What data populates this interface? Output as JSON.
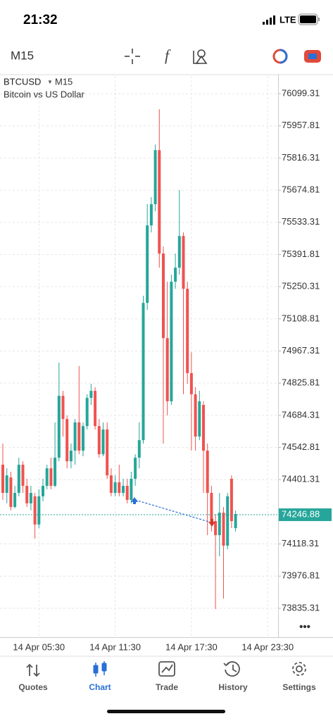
{
  "status_bar": {
    "time": "21:32",
    "network": "LTE"
  },
  "toolbar": {
    "timeframe": "M15"
  },
  "chart_data": {
    "type": "candlestick",
    "symbol": "BTCUSD",
    "timeframe": "M15",
    "subtitle": "Bitcoin vs US Dollar",
    "categories": [
      null,
      null,
      null,
      null,
      null,
      null,
      null,
      null,
      null,
      "14 Apr 05:30",
      null,
      null,
      null,
      null,
      null,
      null,
      null,
      null,
      null,
      null,
      null,
      null,
      null,
      null,
      null,
      null,
      null,
      null,
      "14 Apr 11:30",
      null,
      null,
      null,
      null,
      null,
      null,
      null,
      null,
      null,
      null,
      null,
      null,
      null,
      null,
      null,
      null,
      null,
      null,
      "14 Apr 17:30",
      null,
      null,
      null,
      null,
      null,
      null,
      null,
      null,
      null,
      null,
      null,
      null,
      null,
      null,
      null,
      null,
      null,
      null,
      "14 Apr 23:30"
    ],
    "open": [
      74467,
      74343,
      74411,
      74281,
      74343,
      74467,
      74374,
      74297,
      74328,
      74204,
      74328,
      74374,
      74451,
      74374,
      74498,
      74770,
      74668,
      74482,
      74529,
      74653,
      74529,
      74637,
      74761,
      74792,
      74637,
      74513,
      74622,
      74420,
      74343,
      74390,
      74343,
      74374,
      74312,
      74405,
      74498,
      74575,
      75179,
      75520,
      75613,
      75851,
      75396,
      75024,
      74746,
      75272,
      75334,
      75473,
      75241,
      74870,
      74777,
      74591,
      74730,
      74529,
      74343,
      74219,
      74157,
      74256,
      74111,
      74405,
      74188,
      null,
      null,
      null,
      null,
      null,
      null,
      null,
      null
    ],
    "high": [
      74560,
      74451,
      74436,
      74374,
      74498,
      74482,
      74405,
      74374,
      74343,
      74359,
      74405,
      74467,
      74498,
      74653,
      74916,
      74792,
      74684,
      74560,
      74668,
      74901,
      74653,
      74777,
      74823,
      74808,
      74668,
      74653,
      74653,
      74451,
      74420,
      74467,
      74405,
      74405,
      74436,
      74513,
      74653,
      75210,
      75613,
      75644,
      75876,
      76031,
      75427,
      75272,
      75303,
      75396,
      75675,
      75489,
      75272,
      74962,
      74808,
      74792,
      74746,
      74560,
      74374,
      74250,
      74343,
      74281,
      74343,
      74420,
      74266,
      null,
      null,
      null,
      null,
      null,
      null,
      null,
      null
    ],
    "low": [
      74312,
      74297,
      74266,
      74275,
      74328,
      74343,
      74281,
      74266,
      74142,
      74188,
      74306,
      74359,
      74359,
      74368,
      74482,
      74591,
      74451,
      74451,
      74467,
      74513,
      74504,
      74622,
      74730,
      74622,
      74498,
      74504,
      74405,
      74328,
      74328,
      74328,
      74328,
      74297,
      74297,
      74374,
      74451,
      74560,
      75148,
      75489,
      75582,
      75334,
      74560,
      74684,
      74730,
      75241,
      75303,
      74777,
      74823,
      74529,
      74529,
      74575,
      74343,
      74157,
      74173,
      73832,
      74064,
      73878,
      74095,
      74188,
      74173,
      null,
      null,
      null,
      null,
      null,
      null,
      null,
      null
    ],
    "close": [
      74343,
      74420,
      74281,
      74343,
      74467,
      74374,
      74297,
      74343,
      74204,
      74328,
      74374,
      74451,
      74374,
      74498,
      74770,
      74668,
      74482,
      74529,
      74653,
      74529,
      74637,
      74761,
      74792,
      74637,
      74513,
      74622,
      74420,
      74343,
      74390,
      74343,
      74374,
      74312,
      74405,
      74498,
      74575,
      75179,
      75520,
      75613,
      75851,
      75396,
      75024,
      74746,
      75272,
      75334,
      75473,
      75241,
      74870,
      74777,
      74591,
      74746,
      74529,
      74343,
      74219,
      74157,
      74256,
      74111,
      74328,
      74219,
      74250,
      null,
      null,
      null,
      null,
      null,
      null,
      null,
      null
    ],
    "colors": {
      "up": "#26a69a",
      "down": "#ef5350"
    },
    "last_price": 74246.88,
    "ylim": [
      73708,
      76177
    ],
    "yticks": [
      76099.31,
      75957.81,
      75816.31,
      75674.81,
      75533.31,
      75391.81,
      75250.31,
      75108.81,
      74967.31,
      74825.81,
      74684.31,
      74542.81,
      74401.31,
      74118.31,
      73976.81,
      73835.31
    ],
    "grid": true
  },
  "nav": {
    "items": [
      "Quotes",
      "Chart",
      "Trade",
      "History",
      "Settings"
    ],
    "active": 1
  }
}
